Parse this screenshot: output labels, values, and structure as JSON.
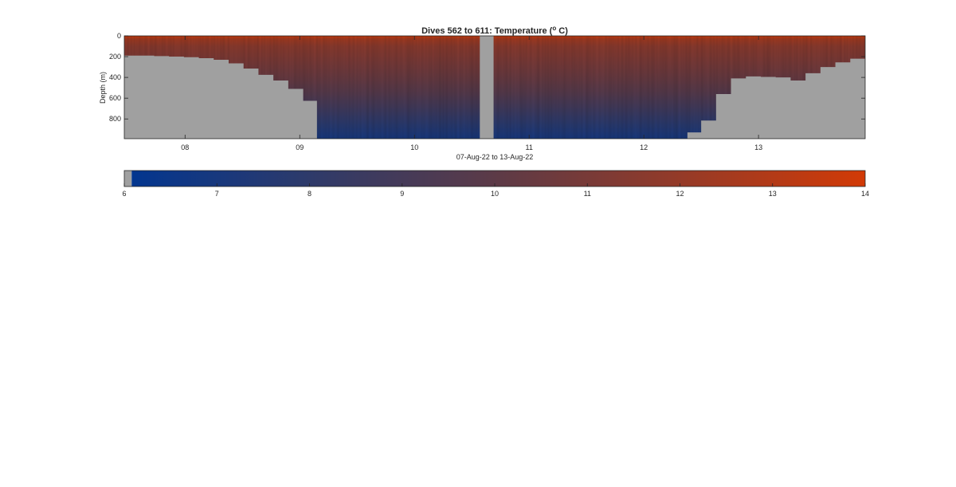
{
  "chart_data": {
    "type": "heatmap",
    "title": "Dives 562 to 611: Temperature (",
    "title_superscript": "o",
    "title_suffix": " C)",
    "xlabel": "07-Aug-22 to 13-Aug-22",
    "ylabel": "Depth (m)",
    "xlim": [
      7.47,
      13.93
    ],
    "ylim": [
      0,
      990
    ],
    "y_reversed": true,
    "x_ticks": [
      {
        "value": 8,
        "label": "08"
      },
      {
        "value": 9,
        "label": "09"
      },
      {
        "value": 10,
        "label": "10"
      },
      {
        "value": 11,
        "label": "11"
      },
      {
        "value": 12,
        "label": "12"
      },
      {
        "value": 13,
        "label": "13"
      }
    ],
    "y_ticks": [
      {
        "value": 0,
        "label": "0"
      },
      {
        "value": 200,
        "label": "200"
      },
      {
        "value": 400,
        "label": "400"
      },
      {
        "value": 600,
        "label": "600"
      },
      {
        "value": 800,
        "label": "800"
      }
    ],
    "no_data_color": "#a0a0a0",
    "gap": {
      "x_start": 10.57,
      "x_end": 10.69
    },
    "temperature_profile": [
      {
        "depth": 0,
        "temp": 13.8
      },
      {
        "depth": 30,
        "temp": 12.4
      },
      {
        "depth": 100,
        "temp": 11.6
      },
      {
        "depth": 250,
        "temp": 11.0
      },
      {
        "depth": 400,
        "temp": 10.4
      },
      {
        "depth": 550,
        "temp": 9.7
      },
      {
        "depth": 700,
        "temp": 8.8
      },
      {
        "depth": 850,
        "temp": 7.8
      },
      {
        "depth": 990,
        "temp": 7.0
      }
    ],
    "max_depth_left": [
      {
        "x": 7.47,
        "depth": 190
      },
      {
        "x": 7.6,
        "depth": 190
      },
      {
        "x": 7.73,
        "depth": 195
      },
      {
        "x": 7.86,
        "depth": 200
      },
      {
        "x": 7.99,
        "depth": 205
      },
      {
        "x": 8.12,
        "depth": 215
      },
      {
        "x": 8.25,
        "depth": 230
      },
      {
        "x": 8.38,
        "depth": 265
      },
      {
        "x": 8.51,
        "depth": 315
      },
      {
        "x": 8.64,
        "depth": 375
      },
      {
        "x": 8.77,
        "depth": 430
      },
      {
        "x": 8.9,
        "depth": 510
      },
      {
        "x": 9.03,
        "depth": 625
      },
      {
        "x": 9.15,
        "depth": 990
      }
    ],
    "max_depth_right": [
      {
        "x": 12.38,
        "depth": 930
      },
      {
        "x": 12.5,
        "depth": 815
      },
      {
        "x": 12.63,
        "depth": 560
      },
      {
        "x": 12.76,
        "depth": 410
      },
      {
        "x": 12.89,
        "depth": 390
      },
      {
        "x": 13.02,
        "depth": 395
      },
      {
        "x": 13.15,
        "depth": 400
      },
      {
        "x": 13.28,
        "depth": 430
      },
      {
        "x": 13.41,
        "depth": 360
      },
      {
        "x": 13.54,
        "depth": 300
      },
      {
        "x": 13.67,
        "depth": 255
      },
      {
        "x": 13.8,
        "depth": 220
      },
      {
        "x": 13.93,
        "depth": 220
      }
    ],
    "colorbar": {
      "min": 6,
      "max": 14,
      "no_data_band_max": 6.08,
      "ticks": [
        6,
        7,
        8,
        9,
        10,
        11,
        12,
        13,
        14
      ],
      "colormap": [
        {
          "value": 6.08,
          "color": "#03368f"
        },
        {
          "value": 8.0,
          "color": "#2e3a6a"
        },
        {
          "value": 10.0,
          "color": "#5c3a47"
        },
        {
          "value": 12.0,
          "color": "#943a28"
        },
        {
          "value": 14.0,
          "color": "#d23a06"
        }
      ]
    }
  }
}
